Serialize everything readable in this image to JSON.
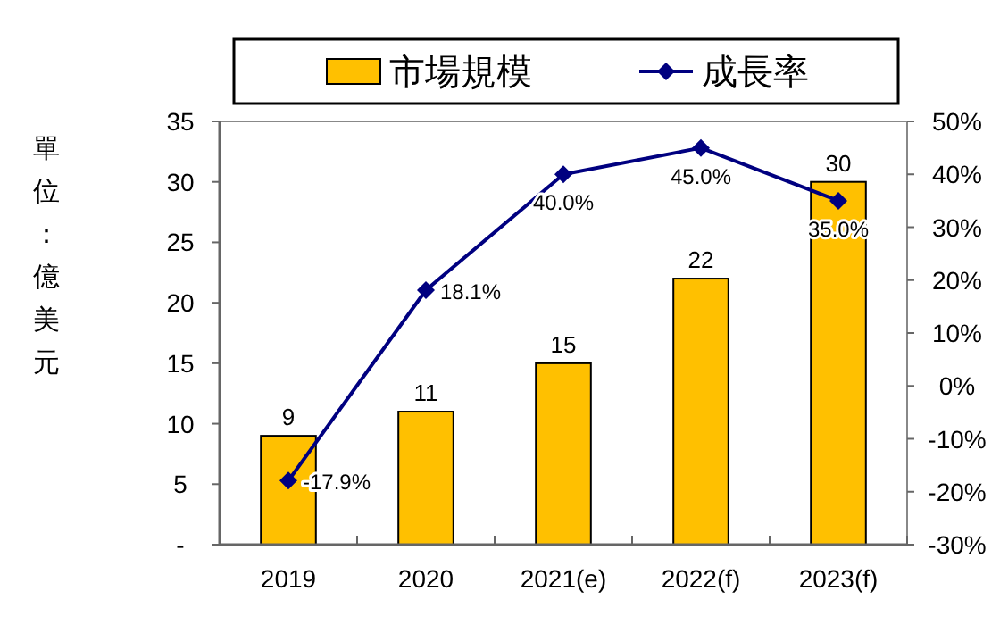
{
  "chart_data": {
    "type": "bar",
    "categories": [
      "2019",
      "2020",
      "2021(e)",
      "2022(f)",
      "2023(f)"
    ],
    "ylabel": "單位：億美元",
    "series": [
      {
        "name": "市場規模",
        "color": "#ffc000",
        "values": [
          9,
          11,
          15,
          22,
          30
        ],
        "value_labels": [
          "9",
          "11",
          "15",
          "22",
          "30"
        ]
      },
      {
        "name": "成長率",
        "type": "line",
        "axis": "y2",
        "color": "#000080",
        "marker": "diamond",
        "values": [
          -17.9,
          18.1,
          40.0,
          45.0,
          35.0
        ],
        "value_labels": [
          "-17.9%",
          "18.1%",
          "40.0%",
          "45.0%",
          "35.0%"
        ]
      }
    ],
    "ylim": [
      0,
      35
    ],
    "yticks": [
      {
        "value": 0,
        "label": "-"
      },
      5,
      10,
      15,
      20,
      25,
      30,
      35
    ],
    "y2lim": [
      -30,
      50
    ],
    "y2ticks": [
      {
        "value": -30,
        "label": "-30%"
      },
      {
        "value": -20,
        "label": "-20%"
      },
      {
        "value": -10,
        "label": "-10%"
      },
      {
        "value": 0,
        "label": "0%"
      },
      {
        "value": 10,
        "label": "10%"
      },
      {
        "value": 20,
        "label": "20%"
      },
      {
        "value": 30,
        "label": "30%"
      },
      {
        "value": 40,
        "label": "40%"
      },
      {
        "value": 50,
        "label": "50%"
      }
    ],
    "grid": false,
    "legend": "top"
  }
}
